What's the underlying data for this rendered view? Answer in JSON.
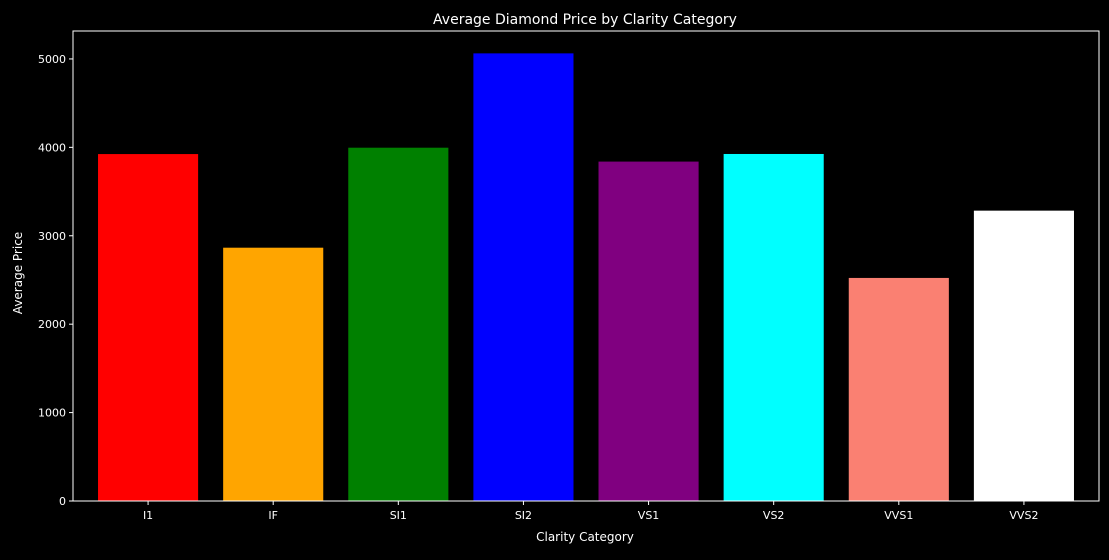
{
  "chart_data": {
    "type": "bar",
    "title": "Average Diamond Price by Clarity Category",
    "xlabel": "Clarity Category",
    "ylabel": "Average Price",
    "categories": [
      "I1",
      "IF",
      "SI1",
      "SI2",
      "VS1",
      "VS2",
      "VVS1",
      "VVS2"
    ],
    "values": [
      3924,
      2865,
      3996,
      5063,
      3839,
      3925,
      2523,
      3284
    ],
    "colors": [
      "#ff0000",
      "#ffa500",
      "#008000",
      "#0000ff",
      "#800080",
      "#00ffff",
      "#fa8072",
      "#ffffff"
    ],
    "ylim": [
      0,
      5316
    ],
    "yticks": [
      0,
      1000,
      2000,
      3000,
      4000,
      5000
    ],
    "grid": false,
    "legend": "none",
    "background": "#000000",
    "foreground": "#ffffff"
  }
}
